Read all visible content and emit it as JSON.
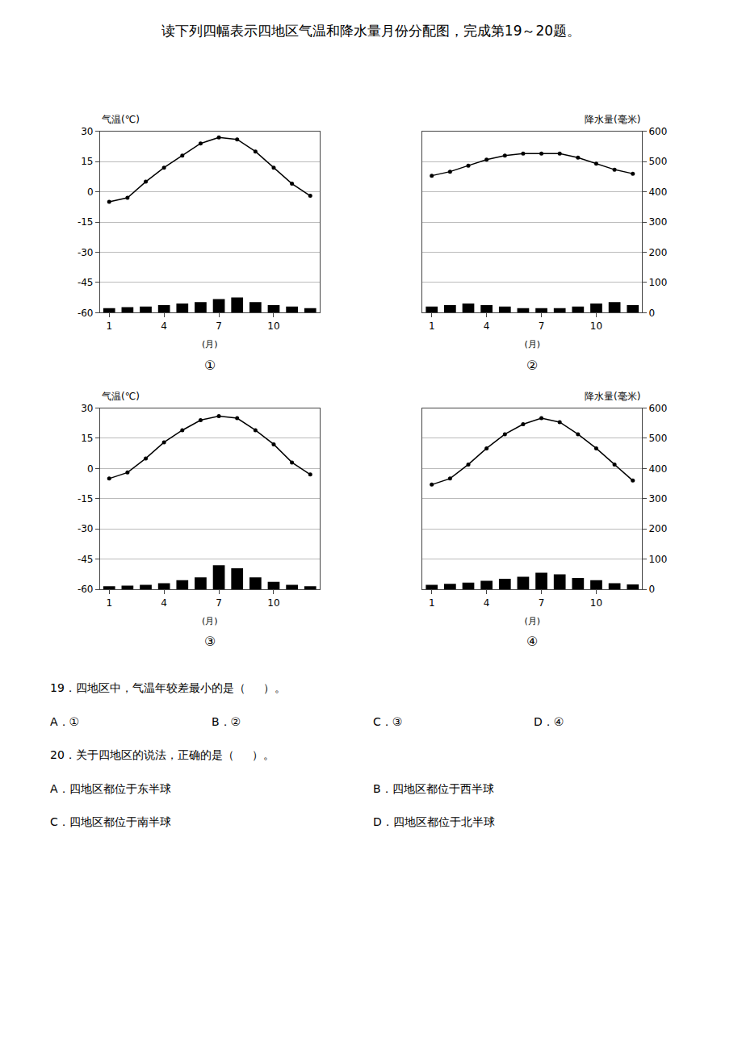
{
  "title": "读下列四幅表示四地区气温和降水量月份分配图，完成第19～20题。",
  "annotations": [
    [
      "19．四地区中，气温年较差最小的是（     ）。"
    ],
    [
      "A．①",
      "B．②",
      "C．③",
      "D．④"
    ],
    [
      "20．关于四地区的说法，正确的是（     ）。"
    ],
    [
      "A．四地区都位于东半球",
      "B．四地区都位于西半球"
    ],
    [
      "C．四地区都位于南半球",
      "D．四地区都位于北半球"
    ]
  ],
  "chart_data": [
    {
      "type": "bar_line",
      "title": "①",
      "xlabel": "(月)",
      "ylabel": "气温(℃)",
      "x": [
        1,
        2,
        3,
        4,
        5,
        6,
        7,
        8,
        9,
        10,
        11,
        12
      ],
      "xlim": [
        0.5,
        12.5
      ],
      "xticks": [
        1,
        4,
        7,
        10
      ],
      "ylim": [
        -60,
        30
      ],
      "yticks": [
        -60,
        -45,
        -30,
        -15,
        0,
        15,
        30
      ],
      "y2lim": [
        0,
        600
      ],
      "grid": true,
      "series": [
        {
          "type": "bar",
          "axis": "y2",
          "color": "#000000",
          "values": [
            15,
            18,
            20,
            25,
            30,
            35,
            45,
            50,
            35,
            25,
            20,
            15
          ]
        },
        {
          "type": "line",
          "color": "#000000",
          "marker": "circle",
          "line_style": "solid",
          "values": [
            -5,
            -3,
            5,
            12,
            18,
            24,
            27,
            26,
            20,
            12,
            4,
            -2
          ]
        }
      ]
    },
    {
      "type": "bar_line",
      "title": "②",
      "xlabel": "(月)",
      "y2label": "降水量(毫米)",
      "x": [
        1,
        2,
        3,
        4,
        5,
        6,
        7,
        8,
        9,
        10,
        11,
        12
      ],
      "xlim": [
        0.5,
        12.5
      ],
      "xticks": [
        1,
        4,
        7,
        10
      ],
      "ylim": [
        -60,
        30
      ],
      "y2lim": [
        0,
        600
      ],
      "y2ticks": [
        0,
        100,
        200,
        300,
        400,
        500,
        600
      ],
      "grid": true,
      "series": [
        {
          "type": "bar",
          "axis": "y2",
          "color": "#000000",
          "values": [
            20,
            25,
            30,
            25,
            20,
            15,
            15,
            15,
            20,
            30,
            35,
            25
          ]
        },
        {
          "type": "line",
          "color": "#000000",
          "marker": "circle",
          "line_style": "solid",
          "values": [
            8,
            10,
            13,
            16,
            18,
            19,
            19,
            19,
            17,
            14,
            11,
            9
          ]
        }
      ]
    },
    {
      "type": "bar_line",
      "title": "③",
      "xlabel": "(月)",
      "ylabel": "气温(℃)",
      "x": [
        1,
        2,
        3,
        4,
        5,
        6,
        7,
        8,
        9,
        10,
        11,
        12
      ],
      "xlim": [
        0.5,
        12.5
      ],
      "xticks": [
        1,
        4,
        7,
        10
      ],
      "ylim": [
        -60,
        30
      ],
      "yticks": [
        -60,
        -45,
        -30,
        -15,
        0,
        15,
        30
      ],
      "y2lim": [
        0,
        600
      ],
      "grid": true,
      "series": [
        {
          "type": "bar",
          "axis": "y2",
          "color": "#000000",
          "values": [
            10,
            12,
            15,
            20,
            30,
            40,
            80,
            70,
            40,
            25,
            15,
            10
          ]
        },
        {
          "type": "line",
          "color": "#000000",
          "marker": "circle",
          "line_style": "solid",
          "values": [
            -5,
            -2,
            5,
            13,
            19,
            24,
            26,
            25,
            19,
            12,
            3,
            -3
          ]
        }
      ]
    },
    {
      "type": "bar_line",
      "title": "④",
      "xlabel": "(月)",
      "y2label": "降水量(毫米)",
      "x": [
        1,
        2,
        3,
        4,
        5,
        6,
        7,
        8,
        9,
        10,
        11,
        12
      ],
      "xlim": [
        0.5,
        12.5
      ],
      "xticks": [
        1,
        4,
        7,
        10
      ],
      "ylim": [
        -60,
        30
      ],
      "y2lim": [
        0,
        600
      ],
      "y2ticks": [
        0,
        100,
        200,
        300,
        400,
        500,
        600
      ],
      "grid": true,
      "series": [
        {
          "type": "bar",
          "axis": "y2",
          "color": "#000000",
          "values": [
            15,
            18,
            22,
            28,
            35,
            42,
            55,
            50,
            38,
            30,
            20,
            16
          ]
        },
        {
          "type": "line",
          "color": "#000000",
          "marker": "circle",
          "line_style": "solid",
          "values": [
            -8,
            -5,
            2,
            10,
            17,
            22,
            25,
            23,
            17,
            10,
            2,
            -6
          ]
        }
      ]
    }
  ]
}
